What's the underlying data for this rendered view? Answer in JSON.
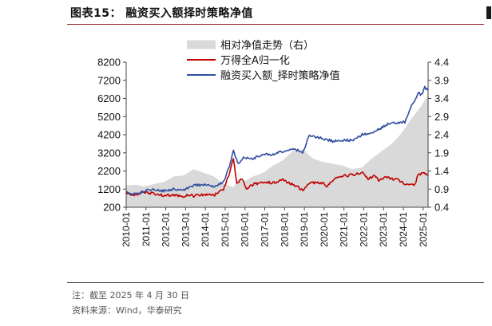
{
  "figure": {
    "title": "图表15：  融资买入额择时策略净值",
    "note": "注：截至 2025 年 4 月 30 日",
    "source": "资料来源：Wind，华泰研究"
  },
  "colors": {
    "title_rule": "#9a1f2a",
    "area": "#d9d9d9",
    "index_line": "#c00000",
    "strategy_line": "#2f4f9f"
  },
  "chart_data": {
    "type": "line",
    "x_ticks": [
      "2010-01",
      "2011-01",
      "2012-01",
      "2013-01",
      "2014-01",
      "2015-01",
      "2016-01",
      "2017-01",
      "2018-01",
      "2019-01",
      "2020-01",
      "2021-01",
      "2022-01",
      "2023-01",
      "2024-01",
      "2025-01"
    ],
    "x_range": [
      "2010-01",
      "2025-04"
    ],
    "y_left": {
      "range": [
        200,
        8200
      ],
      "ticks": [
        200,
        1200,
        2200,
        3200,
        4200,
        5200,
        6200,
        7200,
        8200
      ]
    },
    "y_right": {
      "range": [
        0.4,
        4.4
      ],
      "ticks": [
        "0.4",
        "0.9",
        "1.4",
        "1.9",
        "2.4",
        "2.9",
        "3.4",
        "3.9",
        "4.4"
      ]
    },
    "legend": {
      "placement": "top-left"
    },
    "series": [
      {
        "name": "相对净值走势（右）",
        "type": "area",
        "axis": "right",
        "points": [
          [
            "2010-01",
            1.0
          ],
          [
            "2010-06",
            1.02
          ],
          [
            "2010-12",
            0.98
          ],
          [
            "2011-06",
            1.04
          ],
          [
            "2011-12",
            1.1
          ],
          [
            "2012-06",
            1.25
          ],
          [
            "2012-12",
            1.28
          ],
          [
            "2013-06",
            1.45
          ],
          [
            "2013-12",
            1.35
          ],
          [
            "2014-06",
            1.25
          ],
          [
            "2014-12",
            1.05
          ],
          [
            "2015-03",
            1.0
          ],
          [
            "2015-06",
            0.95
          ],
          [
            "2015-09",
            1.2
          ],
          [
            "2015-12",
            1.1
          ],
          [
            "2016-06",
            1.25
          ],
          [
            "2016-12",
            1.35
          ],
          [
            "2017-06",
            1.55
          ],
          [
            "2017-12",
            1.7
          ],
          [
            "2018-06",
            1.95
          ],
          [
            "2018-12",
            2.0
          ],
          [
            "2019-06",
            1.75
          ],
          [
            "2019-12",
            1.65
          ],
          [
            "2020-06",
            1.6
          ],
          [
            "2020-12",
            1.55
          ],
          [
            "2021-06",
            1.45
          ],
          [
            "2021-12",
            1.5
          ],
          [
            "2022-06",
            1.75
          ],
          [
            "2022-12",
            1.95
          ],
          [
            "2023-06",
            2.15
          ],
          [
            "2023-12",
            2.45
          ],
          [
            "2024-06",
            2.85
          ],
          [
            "2024-12",
            3.2
          ],
          [
            "2025-04",
            3.5
          ]
        ]
      },
      {
        "name": "万得全A归一化",
        "type": "line",
        "axis": "left",
        "points": [
          [
            "2010-01",
            1000
          ],
          [
            "2010-06",
            850
          ],
          [
            "2010-11",
            1050
          ],
          [
            "2011-06",
            950
          ],
          [
            "2011-12",
            850
          ],
          [
            "2012-06",
            880
          ],
          [
            "2012-12",
            800
          ],
          [
            "2013-03",
            920
          ],
          [
            "2013-06",
            820
          ],
          [
            "2013-12",
            900
          ],
          [
            "2014-06",
            850
          ],
          [
            "2014-12",
            1200
          ],
          [
            "2015-03",
            1900
          ],
          [
            "2015-06",
            2900
          ],
          [
            "2015-08",
            1500
          ],
          [
            "2015-11",
            1800
          ],
          [
            "2016-02",
            1250
          ],
          [
            "2016-06",
            1450
          ],
          [
            "2016-12",
            1600
          ],
          [
            "2017-06",
            1550
          ],
          [
            "2017-12",
            1700
          ],
          [
            "2018-06",
            1450
          ],
          [
            "2018-12",
            1150
          ],
          [
            "2019-04",
            1550
          ],
          [
            "2019-12",
            1550
          ],
          [
            "2020-03",
            1350
          ],
          [
            "2020-07",
            1800
          ],
          [
            "2020-12",
            1900
          ],
          [
            "2021-06",
            2000
          ],
          [
            "2021-12",
            2100
          ],
          [
            "2022-04",
            1750
          ],
          [
            "2022-07",
            1950
          ],
          [
            "2022-10",
            1700
          ],
          [
            "2023-02",
            1850
          ],
          [
            "2023-12",
            1650
          ],
          [
            "2024-02",
            1450
          ],
          [
            "2024-08",
            1450
          ],
          [
            "2024-10",
            2050
          ],
          [
            "2024-12",
            2050
          ],
          [
            "2025-04",
            2000
          ]
        ]
      },
      {
        "name": "融资买入额_择时策略净值",
        "type": "line",
        "axis": "left",
        "points": [
          [
            "2010-01",
            1000
          ],
          [
            "2010-06",
            920
          ],
          [
            "2010-12",
            1100
          ],
          [
            "2011-06",
            1200
          ],
          [
            "2011-12",
            1100
          ],
          [
            "2012-06",
            1200
          ],
          [
            "2012-12",
            1150
          ],
          [
            "2013-06",
            1400
          ],
          [
            "2013-12",
            1450
          ],
          [
            "2014-06",
            1350
          ],
          [
            "2014-12",
            1600
          ],
          [
            "2015-03",
            2300
          ],
          [
            "2015-06",
            3300
          ],
          [
            "2015-09",
            2600
          ],
          [
            "2015-12",
            2950
          ],
          [
            "2016-06",
            2900
          ],
          [
            "2016-12",
            3100
          ],
          [
            "2017-06",
            3100
          ],
          [
            "2017-12",
            3300
          ],
          [
            "2018-06",
            3450
          ],
          [
            "2018-12",
            3200
          ],
          [
            "2019-04",
            4150
          ],
          [
            "2019-12",
            4000
          ],
          [
            "2020-06",
            3850
          ],
          [
            "2020-12",
            3900
          ],
          [
            "2021-06",
            3900
          ],
          [
            "2021-12",
            4200
          ],
          [
            "2022-06",
            4250
          ],
          [
            "2022-12",
            4600
          ],
          [
            "2023-06",
            4900
          ],
          [
            "2023-10",
            4850
          ],
          [
            "2024-02",
            4900
          ],
          [
            "2024-06",
            5800
          ],
          [
            "2024-10",
            6500
          ],
          [
            "2024-12",
            6400
          ],
          [
            "2025-02",
            6800
          ],
          [
            "2025-04",
            6650
          ]
        ]
      }
    ]
  }
}
